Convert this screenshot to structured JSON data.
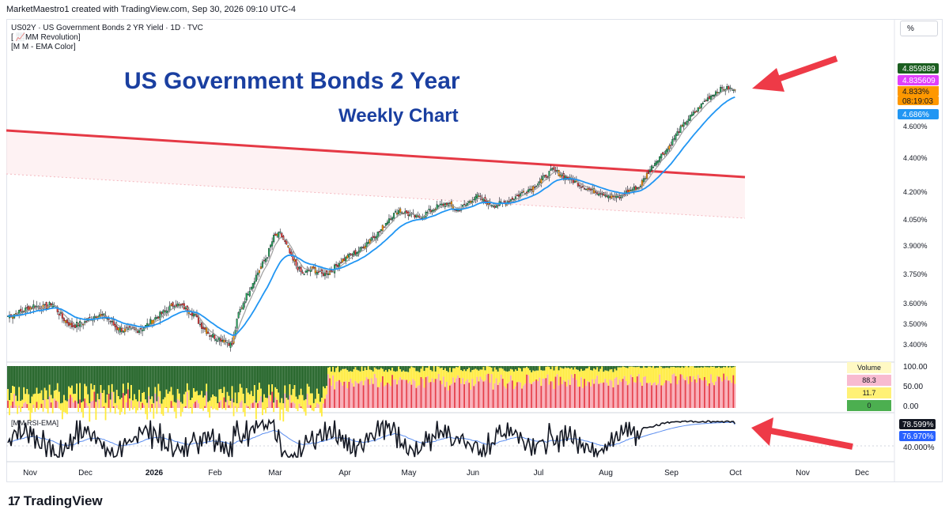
{
  "header": {
    "attribution": "MarketMaestro1 created with TradingView.com, Sep 30, 2026 09:10 UTC-4"
  },
  "symbol": {
    "line1": "US02Y · US Government Bonds 2 YR Yield · 1D · TVC",
    "line2": "[ 📈MM Revolution]",
    "line3": "[M M - EMA Color]"
  },
  "scale_button": "%",
  "annotations": {
    "title": "US Government Bonds 2 Year",
    "subtitle": "Weekly Chart"
  },
  "price_labels": [
    {
      "text": "4.859889",
      "bg": "#1b5e20",
      "fg": "#ffffff"
    },
    {
      "text": "4.835609",
      "bg": "#e040fb",
      "fg": "#ffffff"
    },
    {
      "text": "4.833%",
      "bg": "#ff9800",
      "fg": "#131722"
    },
    {
      "text": "08:19:03",
      "bg": "#ff9800",
      "fg": "#131722"
    },
    {
      "text": "4.686%",
      "bg": "#2196f3",
      "fg": "#ffffff"
    }
  ],
  "volume_panel": {
    "legend_title": "Volume",
    "legend_values": [
      "88.3",
      "11.7",
      "0"
    ],
    "legend_colors": [
      "#f8bbd0",
      "#fff176",
      "#4caf50"
    ],
    "axis_ticks": [
      "100.00",
      "50.00",
      "0.00"
    ]
  },
  "rsi_panel": {
    "label": "[MM RSI-EMA]",
    "values": [
      {
        "text": "78.599%",
        "bg": "#131722",
        "fg": "#ffffff"
      },
      {
        "text": "76.970%",
        "bg": "#2962ff",
        "fg": "#ffffff"
      }
    ],
    "axis_ticks": [
      "40.000%"
    ]
  },
  "footer": {
    "brand": "TradingView",
    "mark": "17"
  },
  "colors": {
    "up": "#26a65b",
    "down": "#e53935",
    "orange": "#ff9800",
    "ema_fast": "#9e9e9e",
    "ema_slow": "#2196f3",
    "trendline": "#e53945",
    "arrow": "#ee3a47",
    "title": "#1a3fa0"
  },
  "chart_data": {
    "type": "candlestick",
    "title": "US Government Bonds 2 Year",
    "subtitle": "Weekly Chart",
    "y_axis_ticks": [
      4.6,
      4.4,
      4.2,
      4.05,
      3.9,
      3.75,
      3.6,
      3.5,
      3.4
    ],
    "y_axis_tick_labels": [
      "4.600%",
      "4.400%",
      "4.200%",
      "4.050%",
      "3.900%",
      "3.750%",
      "3.600%",
      "3.500%",
      "3.400%"
    ],
    "x_axis_labels": [
      "Nov",
      "Dec",
      "2026",
      "Feb",
      "Mar",
      "Apr",
      "May",
      "Jun",
      "Jul",
      "Aug",
      "Sep",
      "Oct",
      "Nov",
      "Dec"
    ],
    "close_path": [
      [
        0,
        3.54
      ],
      [
        8,
        3.56
      ],
      [
        16,
        3.59
      ],
      [
        22,
        3.58
      ],
      [
        28,
        3.6
      ],
      [
        34,
        3.53
      ],
      [
        40,
        3.49
      ],
      [
        48,
        3.51
      ],
      [
        56,
        3.55
      ],
      [
        62,
        3.53
      ],
      [
        68,
        3.48
      ],
      [
        74,
        3.47
      ],
      [
        80,
        3.47
      ],
      [
        86,
        3.49
      ],
      [
        92,
        3.53
      ],
      [
        98,
        3.56
      ],
      [
        104,
        3.6
      ],
      [
        110,
        3.58
      ],
      [
        116,
        3.55
      ],
      [
        120,
        3.5
      ],
      [
        126,
        3.45
      ],
      [
        132,
        3.43
      ],
      [
        136,
        3.42
      ],
      [
        140,
        3.4
      ],
      [
        144,
        3.55
      ],
      [
        150,
        3.66
      ],
      [
        156,
        3.76
      ],
      [
        162,
        3.85
      ],
      [
        166,
        3.95
      ],
      [
        170,
        3.97
      ],
      [
        174,
        3.9
      ],
      [
        178,
        3.82
      ],
      [
        184,
        3.75
      ],
      [
        190,
        3.78
      ],
      [
        196,
        3.75
      ],
      [
        202,
        3.77
      ],
      [
        208,
        3.82
      ],
      [
        214,
        3.85
      ],
      [
        220,
        3.88
      ],
      [
        226,
        3.94
      ],
      [
        232,
        3.98
      ],
      [
        238,
        4.06
      ],
      [
        244,
        4.1
      ],
      [
        250,
        4.08
      ],
      [
        256,
        4.06
      ],
      [
        262,
        4.09
      ],
      [
        268,
        4.12
      ],
      [
        274,
        4.14
      ],
      [
        280,
        4.1
      ],
      [
        286,
        4.13
      ],
      [
        292,
        4.18
      ],
      [
        298,
        4.15
      ],
      [
        304,
        4.13
      ],
      [
        310,
        4.14
      ],
      [
        316,
        4.17
      ],
      [
        322,
        4.2
      ],
      [
        328,
        4.23
      ],
      [
        334,
        4.28
      ],
      [
        340,
        4.33
      ],
      [
        346,
        4.3
      ],
      [
        352,
        4.27
      ],
      [
        358,
        4.24
      ],
      [
        364,
        4.21
      ],
      [
        370,
        4.2
      ],
      [
        376,
        4.18
      ],
      [
        382,
        4.17
      ],
      [
        388,
        4.21
      ],
      [
        394,
        4.23
      ],
      [
        400,
        4.32
      ],
      [
        406,
        4.4
      ],
      [
        412,
        4.46
      ],
      [
        418,
        4.56
      ],
      [
        424,
        4.64
      ],
      [
        430,
        4.7
      ],
      [
        436,
        4.77
      ],
      [
        442,
        4.82
      ],
      [
        446,
        4.84
      ],
      [
        450,
        4.84
      ],
      [
        454,
        4.833
      ]
    ],
    "trendline": {
      "from": [
        0,
        4.62
      ],
      "to": [
        460,
        4.29
      ]
    },
    "last_price": 4.833,
    "ema_value": 4.686,
    "rsi_last": 78.599,
    "rsi_ema_last": 76.97
  }
}
